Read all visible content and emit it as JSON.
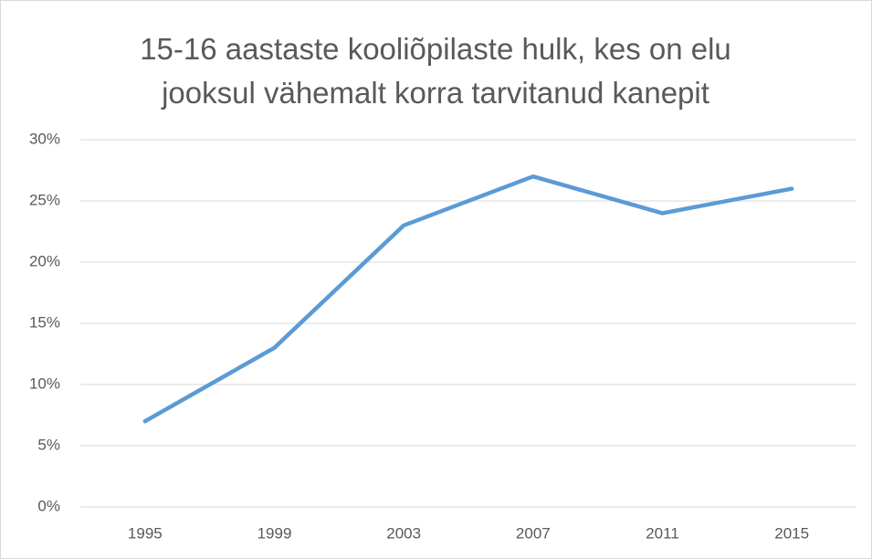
{
  "chart_data": {
    "type": "line",
    "title": "15-16 aastaste kooliõpilaste hulk, kes on elu jooksul vähemalt korra tarvitanud kanepit",
    "categories": [
      "1995",
      "1999",
      "2003",
      "2007",
      "2011",
      "2015"
    ],
    "series": [
      {
        "color": "#5b9bd5",
        "values": [
          7,
          13,
          23,
          27,
          24,
          26
        ]
      }
    ],
    "ylim": [
      0,
      30
    ],
    "yticks": [
      {
        "value": 0,
        "label": "0%"
      },
      {
        "value": 5,
        "label": "5%"
      },
      {
        "value": 10,
        "label": "10%"
      },
      {
        "value": 15,
        "label": "15%"
      },
      {
        "value": 20,
        "label": "20%"
      },
      {
        "value": 25,
        "label": "25%"
      },
      {
        "value": 30,
        "label": "30%"
      }
    ],
    "grid": true
  }
}
